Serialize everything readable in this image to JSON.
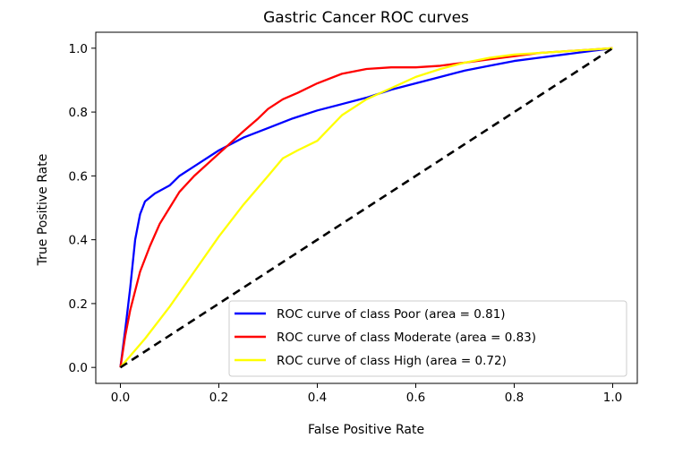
{
  "chart_data": {
    "type": "line",
    "title": "Gastric Cancer ROC curves",
    "xlabel": "False Positive Rate",
    "ylabel": "True Positive Rate",
    "xlim": [
      -0.05,
      1.05
    ],
    "ylim": [
      -0.05,
      1.05
    ],
    "xticks": [
      "0.0",
      "0.2",
      "0.4",
      "0.6",
      "0.8",
      "1.0"
    ],
    "yticks": [
      "0.0",
      "0.2",
      "0.4",
      "0.6",
      "0.8",
      "1.0"
    ],
    "grid": false,
    "legend_position": "lower-right",
    "series": [
      {
        "name": "ROC curve of class Poor (area = 0.81)",
        "color": "#0000ff",
        "x": [
          0.0,
          0.01,
          0.02,
          0.03,
          0.04,
          0.045,
          0.05,
          0.07,
          0.1,
          0.12,
          0.15,
          0.2,
          0.25,
          0.3,
          0.35,
          0.4,
          0.45,
          0.5,
          0.55,
          0.6,
          0.65,
          0.7,
          0.75,
          0.8,
          0.85,
          0.9,
          0.95,
          1.0
        ],
        "y": [
          0.0,
          0.12,
          0.25,
          0.4,
          0.48,
          0.5,
          0.52,
          0.545,
          0.57,
          0.6,
          0.63,
          0.68,
          0.72,
          0.75,
          0.78,
          0.805,
          0.825,
          0.845,
          0.87,
          0.89,
          0.91,
          0.93,
          0.945,
          0.96,
          0.97,
          0.98,
          0.99,
          1.0
        ]
      },
      {
        "name": "ROC curve of class Moderate (area = 0.83)",
        "color": "#ff0000",
        "x": [
          0.0,
          0.01,
          0.02,
          0.04,
          0.06,
          0.08,
          0.1,
          0.12,
          0.15,
          0.2,
          0.25,
          0.28,
          0.3,
          0.33,
          0.36,
          0.4,
          0.45,
          0.5,
          0.55,
          0.6,
          0.65,
          0.7,
          0.75,
          0.8,
          0.85,
          0.9,
          0.95,
          1.0
        ],
        "y": [
          0.0,
          0.1,
          0.18,
          0.3,
          0.38,
          0.45,
          0.5,
          0.55,
          0.6,
          0.67,
          0.74,
          0.78,
          0.81,
          0.84,
          0.86,
          0.89,
          0.92,
          0.935,
          0.94,
          0.94,
          0.945,
          0.955,
          0.965,
          0.975,
          0.985,
          0.99,
          0.995,
          1.0
        ]
      },
      {
        "name": "ROC curve of class High (area = 0.72)",
        "color": "#ffff00",
        "x": [
          0.0,
          0.05,
          0.1,
          0.15,
          0.2,
          0.25,
          0.3,
          0.33,
          0.36,
          0.4,
          0.45,
          0.5,
          0.55,
          0.6,
          0.65,
          0.7,
          0.75,
          0.8,
          0.85,
          0.9,
          0.95,
          1.0
        ],
        "y": [
          0.0,
          0.09,
          0.19,
          0.3,
          0.41,
          0.51,
          0.6,
          0.655,
          0.68,
          0.71,
          0.79,
          0.84,
          0.875,
          0.91,
          0.935,
          0.955,
          0.97,
          0.98,
          0.985,
          0.99,
          0.995,
          1.0
        ]
      },
      {
        "name": "",
        "color": "#000000",
        "dashed": true,
        "x": [
          0.0,
          1.0
        ],
        "y": [
          0.0,
          1.0
        ]
      }
    ]
  }
}
